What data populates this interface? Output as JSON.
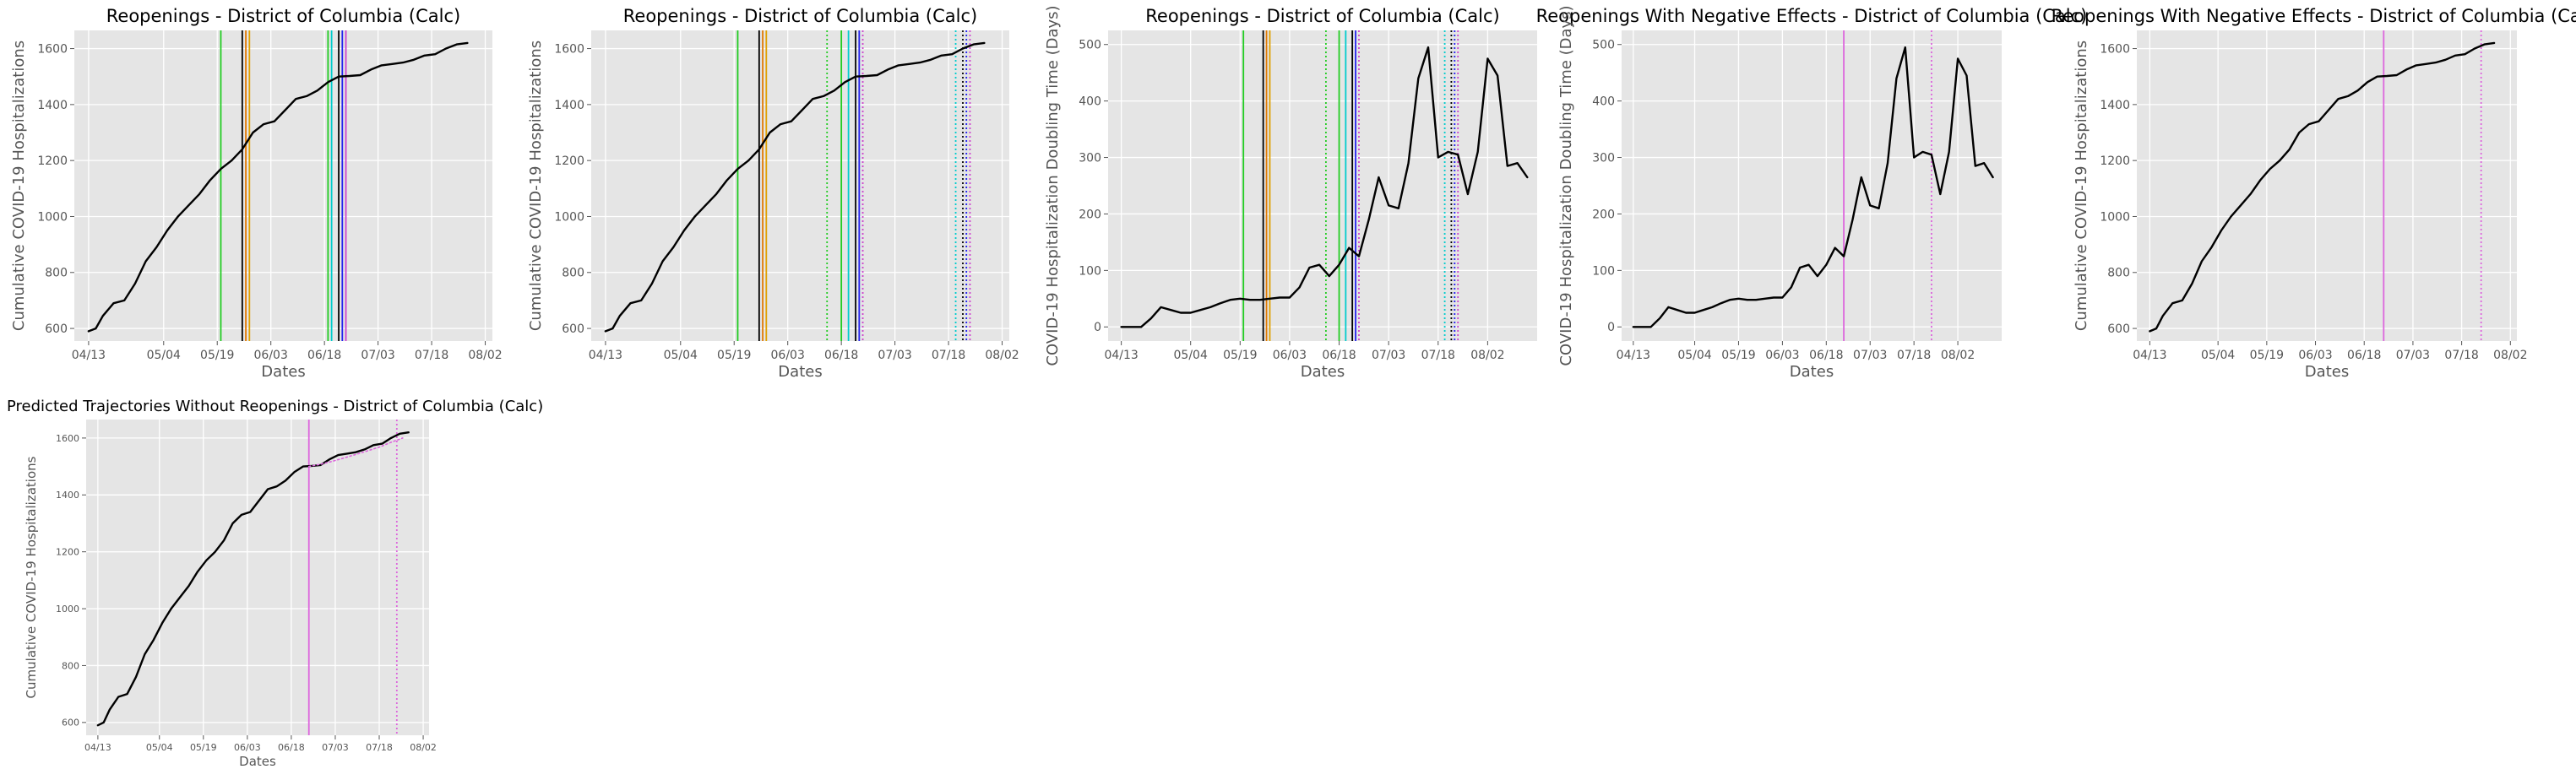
{
  "chart_data": [
    {
      "type": "line",
      "title": "Reopenings - District of Columbia (Calc)",
      "xlabel": "Dates",
      "ylabel": "Cumulative COVID-19 Hospitalizations",
      "xticks": [
        "04/13",
        "05/04",
        "05/19",
        "06/03",
        "06/18",
        "07/03",
        "07/18",
        "08/02"
      ],
      "yticks": [
        "600",
        "800",
        "1000",
        "1200",
        "1400",
        "1600"
      ],
      "xlim": [
        "2020-04-09",
        "2020-08-04"
      ],
      "ylim": [
        555,
        1665
      ],
      "grid": true,
      "series": [
        {
          "color": "#000000",
          "x": [
            "2020-04-13",
            "2020-04-15",
            "2020-04-17",
            "2020-04-20",
            "2020-04-23",
            "2020-04-26",
            "2020-04-29",
            "2020-05-02",
            "2020-05-05",
            "2020-05-08",
            "2020-05-11",
            "2020-05-14",
            "2020-05-17",
            "2020-05-20",
            "2020-05-23",
            "2020-05-26",
            "2020-05-29",
            "2020-06-01",
            "2020-06-04",
            "2020-06-07",
            "2020-06-10",
            "2020-06-13",
            "2020-06-16",
            "2020-06-19",
            "2020-06-22",
            "2020-06-25",
            "2020-06-28",
            "2020-07-01",
            "2020-07-04",
            "2020-07-07",
            "2020-07-10",
            "2020-07-13",
            "2020-07-16",
            "2020-07-19",
            "2020-07-22",
            "2020-07-25",
            "2020-07-28"
          ],
          "y": [
            590,
            600,
            645,
            690,
            700,
            760,
            840,
            890,
            950,
            1000,
            1040,
            1080,
            1130,
            1170,
            1200,
            1240,
            1300,
            1330,
            1340,
            1380,
            1420,
            1430,
            1450,
            1480,
            1500,
            1502,
            1505,
            1525,
            1540,
            1545,
            1550,
            1560,
            1575,
            1580,
            1600,
            1615,
            1620
          ]
        }
      ],
      "vlines": [
        {
          "x": "2020-05-20",
          "color": "#22cc22",
          "style": "solid"
        },
        {
          "x": "2020-05-26",
          "color": "#000000",
          "style": "solid"
        },
        {
          "x": "2020-05-27",
          "color": "#e07800",
          "style": "solid"
        },
        {
          "x": "2020-05-28",
          "color": "#e0a000",
          "style": "solid"
        },
        {
          "x": "2020-06-19",
          "color": "#22cc22",
          "style": "solid"
        },
        {
          "x": "2020-06-20",
          "color": "#00cccc",
          "style": "solid"
        },
        {
          "x": "2020-06-22",
          "color": "#000000",
          "style": "solid"
        },
        {
          "x": "2020-06-23",
          "color": "#2222ee",
          "style": "solid"
        },
        {
          "x": "2020-06-24",
          "color": "#cc44cc",
          "style": "solid"
        }
      ]
    },
    {
      "type": "line",
      "title": "Reopenings - District of Columbia (Calc)",
      "xlabel": "Dates",
      "ylabel": "Cumulative COVID-19 Hospitalizations",
      "xticks": [
        "04/13",
        "05/04",
        "05/19",
        "06/03",
        "06/18",
        "07/03",
        "07/18",
        "08/02"
      ],
      "yticks": [
        "600",
        "800",
        "1000",
        "1200",
        "1400",
        "1600"
      ],
      "xlim": [
        "2020-04-09",
        "2020-08-04"
      ],
      "ylim": [
        555,
        1665
      ],
      "grid": true,
      "series": [
        {
          "color": "#000000",
          "x": [
            "2020-04-13",
            "2020-04-15",
            "2020-04-17",
            "2020-04-20",
            "2020-04-23",
            "2020-04-26",
            "2020-04-29",
            "2020-05-02",
            "2020-05-05",
            "2020-05-08",
            "2020-05-11",
            "2020-05-14",
            "2020-05-17",
            "2020-05-20",
            "2020-05-23",
            "2020-05-26",
            "2020-05-29",
            "2020-06-01",
            "2020-06-04",
            "2020-06-07",
            "2020-06-10",
            "2020-06-13",
            "2020-06-16",
            "2020-06-19",
            "2020-06-22",
            "2020-06-25",
            "2020-06-28",
            "2020-07-01",
            "2020-07-04",
            "2020-07-07",
            "2020-07-10",
            "2020-07-13",
            "2020-07-16",
            "2020-07-19",
            "2020-07-22",
            "2020-07-25",
            "2020-07-28"
          ],
          "y": [
            590,
            600,
            645,
            690,
            700,
            760,
            840,
            890,
            950,
            1000,
            1040,
            1080,
            1130,
            1170,
            1200,
            1240,
            1300,
            1330,
            1340,
            1380,
            1420,
            1430,
            1450,
            1480,
            1500,
            1502,
            1505,
            1525,
            1540,
            1545,
            1550,
            1560,
            1575,
            1580,
            1600,
            1615,
            1620
          ]
        }
      ],
      "vlines": [
        {
          "x": "2020-05-20",
          "color": "#22cc22",
          "style": "solid"
        },
        {
          "x": "2020-05-26",
          "color": "#000000",
          "style": "solid"
        },
        {
          "x": "2020-05-27",
          "color": "#e07800",
          "style": "solid"
        },
        {
          "x": "2020-05-28",
          "color": "#e0a000",
          "style": "solid"
        },
        {
          "x": "2020-06-14",
          "color": "#22cc22",
          "style": "dotted"
        },
        {
          "x": "2020-06-18",
          "color": "#22cc22",
          "style": "solid"
        },
        {
          "x": "2020-06-20",
          "color": "#00cccc",
          "style": "solid"
        },
        {
          "x": "2020-06-22",
          "color": "#000000",
          "style": "solid"
        },
        {
          "x": "2020-06-23",
          "color": "#2222ee",
          "style": "solid"
        },
        {
          "x": "2020-06-24",
          "color": "#cc44cc",
          "style": "dotted"
        },
        {
          "x": "2020-07-20",
          "color": "#00cccc",
          "style": "dotted"
        },
        {
          "x": "2020-07-22",
          "color": "#000000",
          "style": "dotted"
        },
        {
          "x": "2020-07-23",
          "color": "#2222ee",
          "style": "dotted"
        },
        {
          "x": "2020-07-24",
          "color": "#cc44cc",
          "style": "dotted"
        }
      ]
    },
    {
      "type": "line",
      "title": "Reopenings - District of Columbia (Calc)",
      "xlabel": "Dates",
      "ylabel": "COVID-19 Hospitalization Doubling Time (Days)",
      "xticks": [
        "04/13",
        "05/04",
        "05/19",
        "06/03",
        "06/18",
        "07/03",
        "07/18",
        "08/02"
      ],
      "yticks": [
        "0",
        "100",
        "200",
        "300",
        "400",
        "500"
      ],
      "xlim": [
        "2020-04-09",
        "2020-08-17"
      ],
      "ylim": [
        -25,
        525
      ],
      "grid": true,
      "series": [
        {
          "color": "#000000",
          "x": [
            "2020-04-13",
            "2020-04-16",
            "2020-04-19",
            "2020-04-22",
            "2020-04-25",
            "2020-04-28",
            "2020-05-01",
            "2020-05-04",
            "2020-05-07",
            "2020-05-10",
            "2020-05-13",
            "2020-05-16",
            "2020-05-19",
            "2020-05-22",
            "2020-05-25",
            "2020-05-28",
            "2020-05-31",
            "2020-06-03",
            "2020-06-06",
            "2020-06-09",
            "2020-06-12",
            "2020-06-15",
            "2020-06-18",
            "2020-06-21",
            "2020-06-24",
            "2020-06-27",
            "2020-06-30",
            "2020-07-03",
            "2020-07-06",
            "2020-07-09",
            "2020-07-12",
            "2020-07-15",
            "2020-07-18",
            "2020-07-21",
            "2020-07-24",
            "2020-07-27",
            "2020-07-30",
            "2020-08-02",
            "2020-08-05",
            "2020-08-08",
            "2020-08-11",
            "2020-08-14"
          ],
          "y": [
            0,
            0,
            0,
            15,
            35,
            30,
            25,
            25,
            30,
            35,
            42,
            48,
            50,
            48,
            48,
            50,
            52,
            52,
            70,
            105,
            110,
            90,
            110,
            140,
            125,
            190,
            265,
            215,
            210,
            290,
            440,
            495,
            300,
            310,
            305,
            235,
            310,
            475,
            445,
            285,
            290,
            265
          ]
        }
      ],
      "vlines": [
        {
          "x": "2020-05-20",
          "color": "#22cc22",
          "style": "solid"
        },
        {
          "x": "2020-05-26",
          "color": "#000000",
          "style": "solid"
        },
        {
          "x": "2020-05-27",
          "color": "#e07800",
          "style": "solid"
        },
        {
          "x": "2020-05-28",
          "color": "#e0a000",
          "style": "solid"
        },
        {
          "x": "2020-06-14",
          "color": "#22cc22",
          "style": "dotted"
        },
        {
          "x": "2020-06-18",
          "color": "#22cc22",
          "style": "solid"
        },
        {
          "x": "2020-06-20",
          "color": "#00cccc",
          "style": "solid"
        },
        {
          "x": "2020-06-22",
          "color": "#000000",
          "style": "solid"
        },
        {
          "x": "2020-06-23",
          "color": "#2222ee",
          "style": "solid"
        },
        {
          "x": "2020-06-24",
          "color": "#cc44cc",
          "style": "dotted"
        },
        {
          "x": "2020-07-20",
          "color": "#00cccc",
          "style": "dotted"
        },
        {
          "x": "2020-07-22",
          "color": "#000000",
          "style": "dotted"
        },
        {
          "x": "2020-07-23",
          "color": "#2222ee",
          "style": "dotted"
        },
        {
          "x": "2020-07-24",
          "color": "#cc44cc",
          "style": "dotted"
        }
      ]
    },
    {
      "type": "line",
      "title": "Reopenings With Negative Effects - District of Columbia (Calc)",
      "xlabel": "Dates",
      "ylabel": "COVID-19 Hospitalization Doubling Time (Days)",
      "xticks": [
        "04/13",
        "05/04",
        "05/19",
        "06/03",
        "06/18",
        "07/03",
        "07/18",
        "08/02"
      ],
      "yticks": [
        "0",
        "100",
        "200",
        "300",
        "400",
        "500"
      ],
      "xlim": [
        "2020-04-09",
        "2020-08-17"
      ],
      "ylim": [
        -25,
        525
      ],
      "grid": true,
      "series": [
        {
          "color": "#000000",
          "x": [
            "2020-04-13",
            "2020-04-16",
            "2020-04-19",
            "2020-04-22",
            "2020-04-25",
            "2020-04-28",
            "2020-05-01",
            "2020-05-04",
            "2020-05-07",
            "2020-05-10",
            "2020-05-13",
            "2020-05-16",
            "2020-05-19",
            "2020-05-22",
            "2020-05-25",
            "2020-05-28",
            "2020-05-31",
            "2020-06-03",
            "2020-06-06",
            "2020-06-09",
            "2020-06-12",
            "2020-06-15",
            "2020-06-18",
            "2020-06-21",
            "2020-06-24",
            "2020-06-27",
            "2020-06-30",
            "2020-07-03",
            "2020-07-06",
            "2020-07-09",
            "2020-07-12",
            "2020-07-15",
            "2020-07-18",
            "2020-07-21",
            "2020-07-24",
            "2020-07-27",
            "2020-07-30",
            "2020-08-02",
            "2020-08-05",
            "2020-08-08",
            "2020-08-11",
            "2020-08-14"
          ],
          "y": [
            0,
            0,
            0,
            15,
            35,
            30,
            25,
            25,
            30,
            35,
            42,
            48,
            50,
            48,
            48,
            50,
            52,
            52,
            70,
            105,
            110,
            90,
            110,
            140,
            125,
            190,
            265,
            215,
            210,
            290,
            440,
            495,
            300,
            310,
            305,
            235,
            310,
            475,
            445,
            285,
            290,
            265
          ]
        }
      ],
      "vlines": [
        {
          "x": "2020-06-24",
          "color": "#dd66dd",
          "style": "solid"
        },
        {
          "x": "2020-07-24",
          "color": "#dd66dd",
          "style": "dotted"
        }
      ]
    },
    {
      "type": "line",
      "title": "Reopenings With Negative Effects - District of Columbia (Calc)",
      "xlabel": "Dates",
      "ylabel": "Cumulative COVID-19 Hospitalizations",
      "xticks": [
        "04/13",
        "05/04",
        "05/19",
        "06/03",
        "06/18",
        "07/03",
        "07/18",
        "08/02"
      ],
      "yticks": [
        "600",
        "800",
        "1000",
        "1200",
        "1400",
        "1600"
      ],
      "xlim": [
        "2020-04-09",
        "2020-08-04"
      ],
      "ylim": [
        555,
        1665
      ],
      "grid": true,
      "series": [
        {
          "color": "#000000",
          "x": [
            "2020-04-13",
            "2020-04-15",
            "2020-04-17",
            "2020-04-20",
            "2020-04-23",
            "2020-04-26",
            "2020-04-29",
            "2020-05-02",
            "2020-05-05",
            "2020-05-08",
            "2020-05-11",
            "2020-05-14",
            "2020-05-17",
            "2020-05-20",
            "2020-05-23",
            "2020-05-26",
            "2020-05-29",
            "2020-06-01",
            "2020-06-04",
            "2020-06-07",
            "2020-06-10",
            "2020-06-13",
            "2020-06-16",
            "2020-06-19",
            "2020-06-22",
            "2020-06-25",
            "2020-06-28",
            "2020-07-01",
            "2020-07-04",
            "2020-07-07",
            "2020-07-10",
            "2020-07-13",
            "2020-07-16",
            "2020-07-19",
            "2020-07-22",
            "2020-07-25",
            "2020-07-28"
          ],
          "y": [
            590,
            600,
            645,
            690,
            700,
            760,
            840,
            890,
            950,
            1000,
            1040,
            1080,
            1130,
            1170,
            1200,
            1240,
            1300,
            1330,
            1340,
            1380,
            1420,
            1430,
            1450,
            1480,
            1500,
            1502,
            1505,
            1525,
            1540,
            1545,
            1550,
            1560,
            1575,
            1580,
            1600,
            1615,
            1620
          ]
        }
      ],
      "vlines": [
        {
          "x": "2020-06-24",
          "color": "#dd66dd",
          "style": "solid"
        },
        {
          "x": "2020-07-24",
          "color": "#dd66dd",
          "style": "dotted"
        }
      ]
    },
    {
      "type": "line",
      "title": "Predicted Trajectories Without Reopenings - District of Columbia (Calc)",
      "xlabel": "Dates",
      "ylabel": "Cumulative COVID-19 Hospitalizations",
      "xticks": [
        "04/13",
        "05/04",
        "05/19",
        "06/03",
        "06/18",
        "07/03",
        "07/18",
        "08/02"
      ],
      "yticks": [
        "600",
        "800",
        "1000",
        "1200",
        "1400",
        "1600"
      ],
      "xlim": [
        "2020-04-09",
        "2020-08-04"
      ],
      "ylim": [
        555,
        1665
      ],
      "grid": true,
      "series": [
        {
          "color": "#000000",
          "x": [
            "2020-04-13",
            "2020-04-15",
            "2020-04-17",
            "2020-04-20",
            "2020-04-23",
            "2020-04-26",
            "2020-04-29",
            "2020-05-02",
            "2020-05-05",
            "2020-05-08",
            "2020-05-11",
            "2020-05-14",
            "2020-05-17",
            "2020-05-20",
            "2020-05-23",
            "2020-05-26",
            "2020-05-29",
            "2020-06-01",
            "2020-06-04",
            "2020-06-07",
            "2020-06-10",
            "2020-06-13",
            "2020-06-16",
            "2020-06-19",
            "2020-06-22",
            "2020-06-25",
            "2020-06-28",
            "2020-07-01",
            "2020-07-04",
            "2020-07-07",
            "2020-07-10",
            "2020-07-13",
            "2020-07-16",
            "2020-07-19",
            "2020-07-22",
            "2020-07-25",
            "2020-07-28"
          ],
          "y": [
            590,
            600,
            645,
            690,
            700,
            760,
            840,
            890,
            950,
            1000,
            1040,
            1080,
            1130,
            1170,
            1200,
            1240,
            1300,
            1330,
            1340,
            1380,
            1420,
            1430,
            1450,
            1480,
            1500,
            1502,
            1505,
            1525,
            1540,
            1545,
            1550,
            1560,
            1575,
            1580,
            1600,
            1615,
            1620
          ]
        },
        {
          "color": "#dd66dd",
          "style": "dotted",
          "x": [
            "2020-06-24",
            "2020-06-28",
            "2020-07-02",
            "2020-07-06",
            "2020-07-10",
            "2020-07-14",
            "2020-07-18",
            "2020-07-22",
            "2020-07-26"
          ],
          "y": [
            1500,
            1508,
            1518,
            1530,
            1542,
            1555,
            1568,
            1585,
            1600
          ]
        }
      ],
      "vlines": [
        {
          "x": "2020-06-24",
          "color": "#dd66dd",
          "style": "solid"
        },
        {
          "x": "2020-07-24",
          "color": "#dd66dd",
          "style": "dotted"
        }
      ]
    }
  ]
}
